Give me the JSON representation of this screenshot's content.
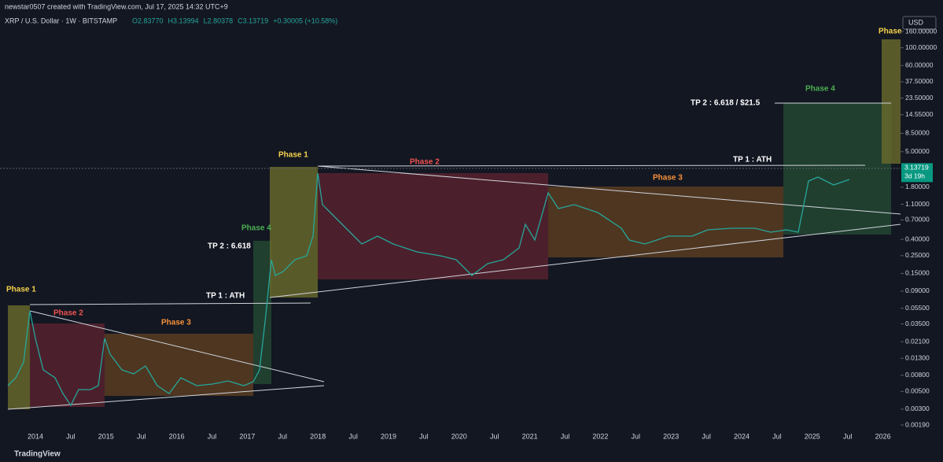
{
  "header": {
    "credit": "newstar0507 created with TradingView.com, Jul 17, 2025 14:32 UTC+9",
    "symbol": "XRP / U.S. Dollar · 1W · BITSTAMP",
    "ohlc": [
      "O2.83770",
      "H3.13994",
      "L2.80378",
      "C3.13719",
      "+0.30005 (+10.58%)"
    ]
  },
  "price_axis": {
    "currency": "USD",
    "scale": "log",
    "ylim": [
      0.0019,
      160
    ],
    "ticks": [
      {
        "value": 160,
        "label": "160.00000"
      },
      {
        "value": 100,
        "label": "100.00000"
      },
      {
        "value": 60,
        "label": "60.00000"
      },
      {
        "value": 37.5,
        "label": "37.50000"
      },
      {
        "value": 23.5,
        "label": "23.50000"
      },
      {
        "value": 14.55,
        "label": "14.55000"
      },
      {
        "value": 8.5,
        "label": "8.50000"
      },
      {
        "value": 5,
        "label": "5.00000"
      },
      {
        "value": 1.8,
        "label": "1.80000"
      },
      {
        "value": 1.1,
        "label": "1.10000"
      },
      {
        "value": 0.7,
        "label": "0.70000"
      },
      {
        "value": 0.4,
        "label": "0.40000"
      },
      {
        "value": 0.25,
        "label": "0.25000"
      },
      {
        "value": 0.15,
        "label": "0.15000"
      },
      {
        "value": 0.09,
        "label": "0.09000"
      },
      {
        "value": 0.055,
        "label": "0.05500"
      },
      {
        "value": 0.035,
        "label": "0.03500"
      },
      {
        "value": 0.021,
        "label": "0.02100"
      },
      {
        "value": 0.013,
        "label": "0.01300"
      },
      {
        "value": 0.008,
        "label": "0.00800"
      },
      {
        "value": 0.005,
        "label": "0.00500"
      },
      {
        "value": 0.003,
        "label": "0.00300"
      },
      {
        "value": 0.0019,
        "label": "0.00190"
      }
    ],
    "last_price": 3.13719,
    "countdown": "3d 19h"
  },
  "time_axis": {
    "labels": [
      "2014",
      "Jul",
      "2015",
      "Jul",
      "2016",
      "Jul",
      "2017",
      "Jul",
      "2018",
      "Jul",
      "2019",
      "Jul",
      "2020",
      "Jul",
      "2021",
      "Jul",
      "2022",
      "Jul",
      "2023",
      "Jul",
      "2024",
      "Jul",
      "2025",
      "Jul",
      "2026"
    ]
  },
  "annotations": [
    {
      "text": "Phase 1",
      "color": "#f5d24b"
    },
    {
      "text": "Phase 2",
      "color": "#f05350"
    },
    {
      "text": "Phase 3",
      "color": "#f7913a"
    },
    {
      "text": "TP 1 : ATH",
      "color": "#ffffff"
    },
    {
      "text": "Phase 4",
      "color": "#4caf50"
    },
    {
      "text": "TP 2 : 6.618",
      "color": "#ffffff"
    },
    {
      "text": "Phase 1",
      "color": "#f5d24b"
    },
    {
      "text": "Phase 2",
      "color": "#f05350"
    },
    {
      "text": "Phase 3",
      "color": "#f7913a"
    },
    {
      "text": "TP 1 : ATH",
      "color": "#ffffff"
    },
    {
      "text": "TP 2 : 6.618 / $21.5",
      "color": "#ffffff"
    },
    {
      "text": "Phase 4",
      "color": "#4caf50"
    },
    {
      "text": "Phase",
      "color": "#f5d24b"
    }
  ],
  "footer": {
    "brand": "TradingView"
  }
}
